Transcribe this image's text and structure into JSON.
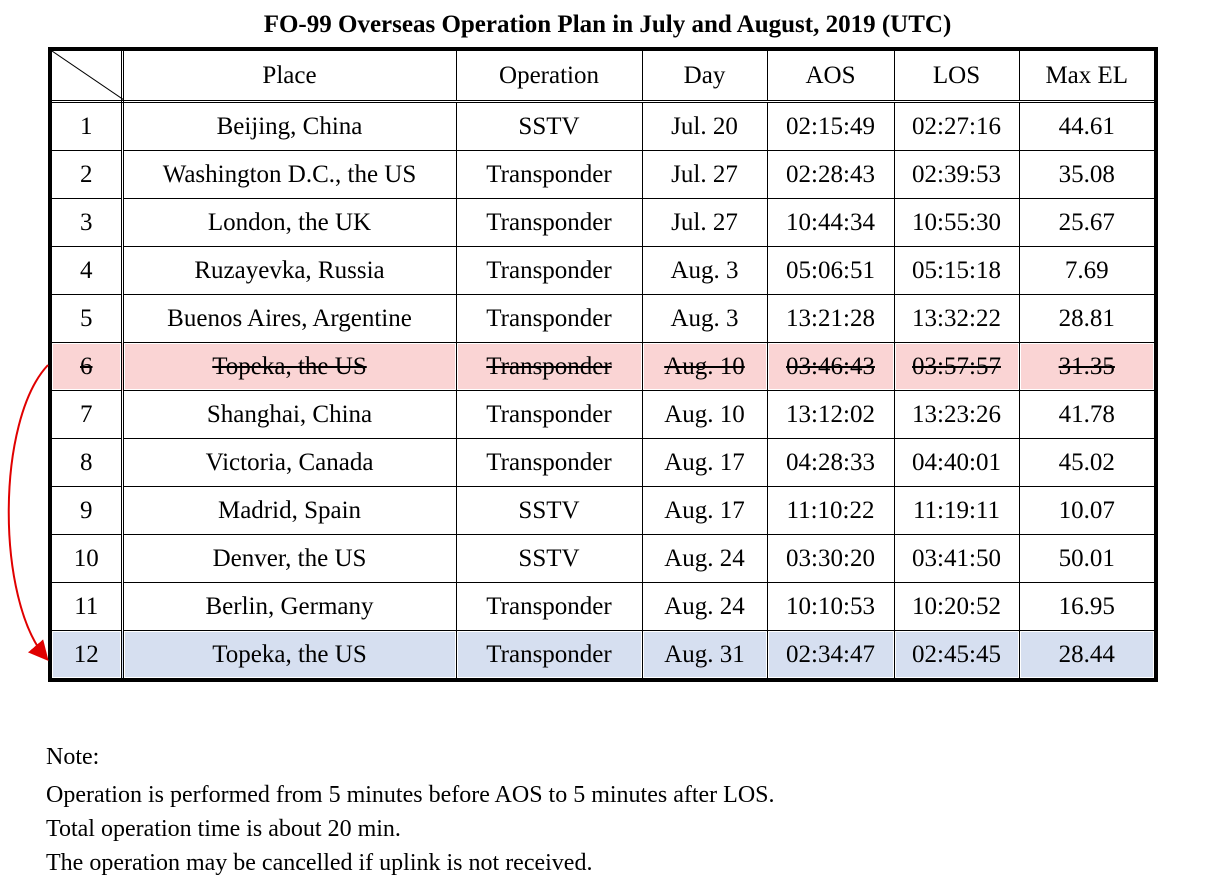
{
  "title": "FO-99 Overseas Operation Plan in July and August, 2019 (UTC)",
  "table": {
    "headers": [
      "Place",
      "Operation",
      "Day",
      "AOS",
      "LOS",
      "Max EL"
    ],
    "rows": [
      {
        "no": "1",
        "place": "Beijing, China",
        "operation": "SSTV",
        "day": "Jul. 20",
        "aos": "02:15:49",
        "los": "02:27:16",
        "max_el": "44.61"
      },
      {
        "no": "2",
        "place": "Washington D.C., the US",
        "operation": "Transponder",
        "day": "Jul. 27",
        "aos": "02:28:43",
        "los": "02:39:53",
        "max_el": "35.08"
      },
      {
        "no": "3",
        "place": "London, the UK",
        "operation": "Transponder",
        "day": "Jul. 27",
        "aos": "10:44:34",
        "los": "10:55:30",
        "max_el": "25.67"
      },
      {
        "no": "4",
        "place": "Ruzayevka, Russia",
        "operation": "Transponder",
        "day": "Aug. 3",
        "aos": "05:06:51",
        "los": "05:15:18",
        "max_el": "7.69"
      },
      {
        "no": "5",
        "place": "Buenos Aires, Argentine",
        "operation": "Transponder",
        "day": "Aug. 3",
        "aos": "13:21:28",
        "los": "13:32:22",
        "max_el": "28.81"
      },
      {
        "no": "6",
        "place": "Topeka, the US",
        "operation": "Transponder",
        "day": "Aug. 10",
        "aos": "03:46:43",
        "los": "03:57:57",
        "max_el": "31.35",
        "status": "cancelled"
      },
      {
        "no": "7",
        "place": "Shanghai, China",
        "operation": "Transponder",
        "day": "Aug. 10",
        "aos": "13:12:02",
        "los": "13:23:26",
        "max_el": "41.78"
      },
      {
        "no": "8",
        "place": "Victoria, Canada",
        "operation": "Transponder",
        "day": "Aug. 17",
        "aos": "04:28:33",
        "los": "04:40:01",
        "max_el": "45.02"
      },
      {
        "no": "9",
        "place": "Madrid, Spain",
        "operation": "SSTV",
        "day": "Aug. 17",
        "aos": "11:10:22",
        "los": "11:19:11",
        "max_el": "10.07"
      },
      {
        "no": "10",
        "place": "Denver, the US",
        "operation": "SSTV",
        "day": "Aug. 24",
        "aos": "03:30:20",
        "los": "03:41:50",
        "max_el": "50.01"
      },
      {
        "no": "11",
        "place": "Berlin, Germany",
        "operation": "Transponder",
        "day": "Aug. 24",
        "aos": "10:10:53",
        "los": "10:20:52",
        "max_el": "16.95"
      },
      {
        "no": "12",
        "place": "Topeka, the US",
        "operation": "Transponder",
        "day": "Aug. 31",
        "aos": "02:34:47",
        "los": "02:45:45",
        "max_el": "28.44",
        "status": "moved"
      }
    ]
  },
  "note": {
    "heading": "Note:",
    "lines": [
      "Operation is performed from 5 minutes before AOS to 5 minutes after LOS.",
      "Total operation time is about 20 min.",
      "The operation may be cancelled if uplink is not received."
    ]
  },
  "colors": {
    "cancelled_row": "#fad4d4",
    "moved_row": "#d6dff0",
    "arrow": "#e00000"
  }
}
